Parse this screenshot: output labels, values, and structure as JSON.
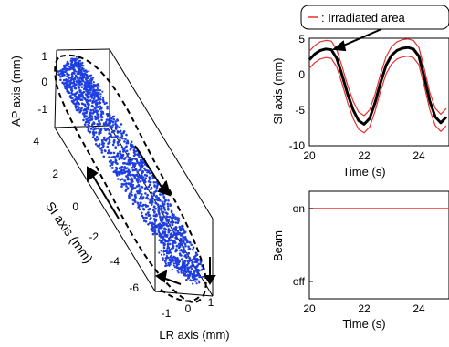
{
  "chart_data": [
    {
      "type": "scatter",
      "panel": "3d-trajectory",
      "xlabel": "LR axis (mm)",
      "ylabel": "SI axis (mm)",
      "zlabel": "AP axis (mm)",
      "x_ticks": [
        "-1",
        "0",
        "1"
      ],
      "y_ticks": [
        "4",
        "2",
        "0",
        "-2",
        "-4",
        "-6"
      ],
      "z_ticks": [
        "1",
        "0",
        "-1"
      ],
      "xlim": [
        -1.3,
        1.3
      ],
      "ylim": [
        -7,
        5
      ],
      "zlim": [
        -1.3,
        1.3
      ],
      "series": [
        {
          "color": "#1f3fe0",
          "points": "dense cloud of 3D tumor positions along the SI direction"
        }
      ],
      "grid": false
    },
    {
      "type": "line",
      "panel": "si-vs-time",
      "xlabel": "Time (s)",
      "ylabel": "SI axis (mm)",
      "x_ticks": [
        "20",
        "22",
        "24"
      ],
      "y_ticks": [
        "5",
        "0",
        "-5",
        "-10"
      ],
      "xlim": [
        20,
        25.1
      ],
      "ylim": [
        -10,
        5
      ],
      "legend": {
        "entries": [
          {
            "label": ": Irradiated area",
            "color": "#e8302e"
          }
        ],
        "placement": "top-right"
      },
      "series": [
        {
          "color": "#000000",
          "x": [
            20.0,
            20.2,
            20.4,
            20.6,
            20.8,
            21.0,
            21.2,
            21.4,
            21.6,
            21.8,
            22.0,
            22.2,
            22.4,
            22.6,
            22.8,
            23.0,
            23.2,
            23.4,
            23.6,
            23.8,
            24.0,
            24.2,
            24.4,
            24.6,
            24.8,
            25.0
          ],
          "y": [
            2.0,
            2.8,
            3.3,
            3.5,
            3.4,
            2.2,
            -0.2,
            -2.8,
            -5.0,
            -6.5,
            -7.0,
            -6.2,
            -4.0,
            -1.2,
            1.2,
            2.6,
            3.3,
            3.6,
            3.7,
            3.5,
            2.5,
            -0.5,
            -3.8,
            -6.0,
            -6.8,
            -6.0
          ]
        },
        {
          "color": "#e8302e",
          "name": "upper bound",
          "x": [
            20.0,
            20.2,
            20.4,
            20.6,
            20.8,
            21.0,
            21.2,
            21.4,
            21.6,
            21.8,
            22.0,
            22.2,
            22.4,
            22.6,
            22.8,
            23.0,
            23.2,
            23.4,
            23.6,
            23.8,
            24.0,
            24.2,
            24.4,
            24.6,
            24.8,
            25.0
          ],
          "y": [
            3.2,
            4.0,
            4.5,
            4.7,
            4.6,
            3.4,
            1.0,
            -1.6,
            -3.8,
            -5.3,
            -5.8,
            -5.0,
            -2.8,
            0.0,
            2.4,
            3.8,
            4.5,
            4.8,
            4.9,
            4.7,
            3.7,
            0.7,
            -2.6,
            -4.8,
            -5.6,
            -4.8
          ]
        },
        {
          "color": "#e8302e",
          "name": "lower bound",
          "x": [
            20.0,
            20.2,
            20.4,
            20.6,
            20.8,
            21.0,
            21.2,
            21.4,
            21.6,
            21.8,
            22.0,
            22.2,
            22.4,
            22.6,
            22.8,
            23.0,
            23.2,
            23.4,
            23.6,
            23.8,
            24.0,
            24.2,
            24.4,
            24.6,
            24.8,
            25.0
          ],
          "y": [
            0.8,
            1.6,
            2.1,
            2.3,
            2.2,
            1.0,
            -1.4,
            -4.0,
            -6.2,
            -7.7,
            -8.2,
            -7.4,
            -5.2,
            -2.4,
            0.0,
            1.4,
            2.1,
            2.4,
            2.5,
            2.3,
            1.3,
            -1.7,
            -5.0,
            -7.2,
            -8.0,
            -7.2
          ]
        }
      ],
      "grid": false
    },
    {
      "type": "line",
      "panel": "beam-vs-time",
      "xlabel": "Time (s)",
      "ylabel": "Beam",
      "x_ticks": [
        "20",
        "22",
        "24"
      ],
      "y_ticks": [
        "on",
        "off"
      ],
      "xlim": [
        20,
        25.1
      ],
      "series": [
        {
          "color": "#e8302e",
          "x": [
            20,
            25.1
          ],
          "y": [
            "on",
            "on"
          ]
        }
      ],
      "grid": false
    }
  ]
}
